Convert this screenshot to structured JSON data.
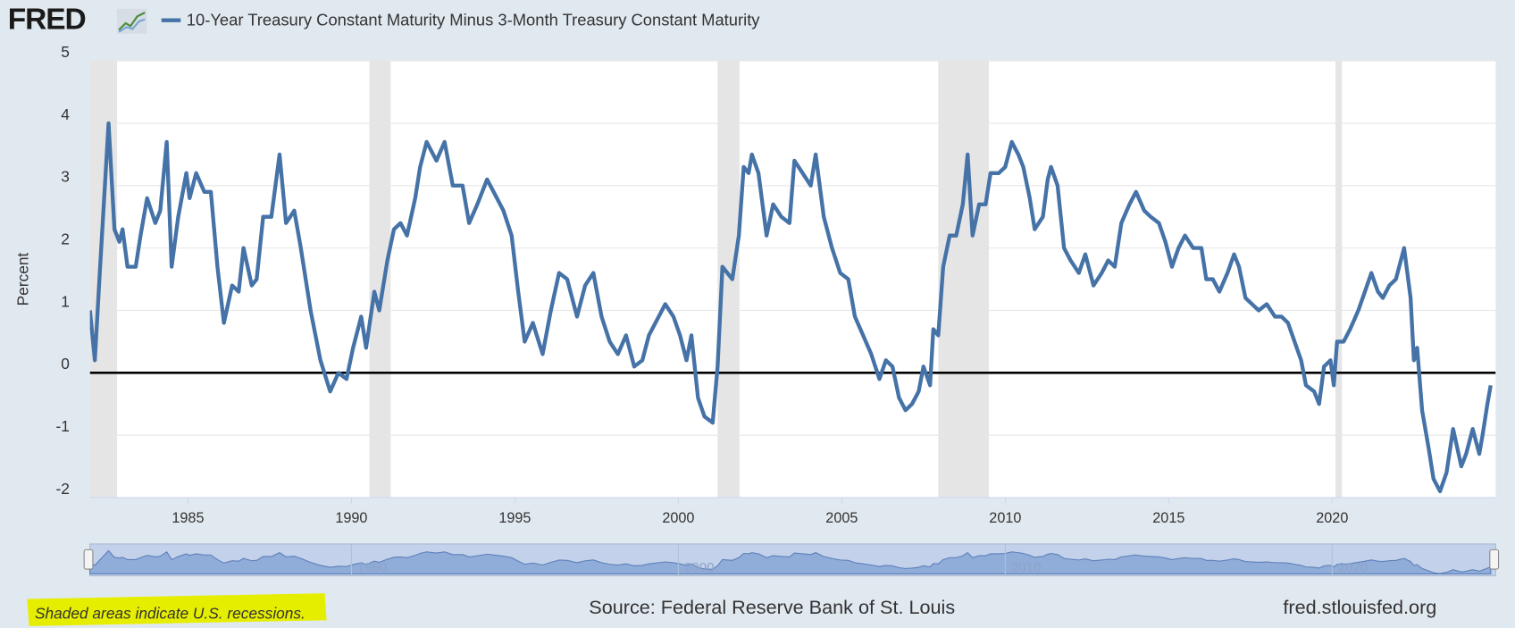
{
  "header": {
    "logo": "FRED"
  },
  "chart_data": {
    "type": "line",
    "series": [
      {
        "name": "10-Year Treasury Constant Maturity Minus 3-Month Treasury Constant Maturity",
        "color": "#4572a7",
        "values": [
          1.0,
          0.2,
          1.6,
          4.0,
          2.3,
          2.1,
          2.3,
          1.7,
          1.7,
          2.2,
          2.8,
          2.4,
          2.6,
          3.7,
          1.7,
          2.5,
          3.2,
          2.8,
          3.2,
          2.9,
          2.9,
          1.7,
          0.8,
          1.4,
          1.3,
          2.0,
          1.4,
          1.5,
          2.5,
          2.5,
          3.5,
          2.4,
          2.6,
          2.0,
          1.0,
          0.2,
          -0.3,
          0.0,
          -0.1,
          0.4,
          0.9,
          0.4,
          1.3,
          1.0,
          1.8,
          2.3,
          2.4,
          2.2,
          2.8,
          3.3,
          3.7,
          3.4,
          3.7,
          3.0,
          3.0,
          2.4,
          2.7,
          3.1,
          2.8,
          2.6,
          2.2,
          1.3,
          0.5,
          0.8,
          0.3,
          1.0,
          1.6,
          1.5,
          0.9,
          1.4,
          1.6,
          0.9,
          0.5,
          0.3,
          0.6,
          0.1,
          0.2,
          0.6,
          0.9,
          1.1,
          0.9,
          0.6,
          0.2,
          0.6,
          -0.4,
          -0.7,
          -0.8,
          0.1,
          1.7,
          1.5,
          2.2,
          3.3,
          3.2,
          3.5,
          3.2,
          2.2,
          2.7,
          2.5,
          2.4,
          3.4,
          3.2,
          3.0,
          3.5,
          2.5,
          2.0,
          1.6,
          1.5,
          0.9,
          0.6,
          0.3,
          -0.1,
          0.2,
          0.1,
          -0.4,
          -0.6,
          -0.5,
          -0.3,
          0.1,
          -0.2,
          0.7,
          0.6,
          1.7,
          2.2,
          2.2,
          2.7,
          3.5,
          2.2,
          2.7,
          2.7,
          3.2,
          3.2,
          3.3,
          3.7,
          3.5,
          3.3,
          2.8,
          2.3,
          2.5,
          3.1,
          3.3,
          3.0,
          2.0,
          1.8,
          1.6,
          1.9,
          1.4,
          1.6,
          1.8,
          1.7,
          2.4,
          2.7,
          2.9,
          2.6,
          2.5,
          2.4,
          2.1,
          1.7,
          2.0,
          2.2,
          2.0,
          2.0,
          1.5,
          1.5,
          1.3,
          1.6,
          1.9,
          1.7,
          1.2,
          1.1,
          1.0,
          1.1,
          0.9,
          0.9,
          0.8,
          0.5,
          0.2,
          -0.2,
          -0.3,
          -0.5,
          0.1,
          0.2,
          -0.2,
          0.5,
          0.5,
          0.7,
          1.0,
          1.3,
          1.6,
          1.3,
          1.2,
          1.4,
          1.5,
          2.0,
          1.2,
          0.2,
          0.4,
          -0.6,
          -1.2,
          -1.7,
          -1.9,
          -1.6,
          -0.9,
          -1.5,
          -1.3,
          -0.9,
          -1.3,
          -1.0,
          -0.5,
          -0.2
        ]
      }
    ],
    "x": [
      1982.0,
      1982.15,
      1982.3,
      1982.57,
      1982.75,
      1982.9,
      1983.0,
      1983.15,
      1983.4,
      1983.55,
      1983.75,
      1984.0,
      1984.15,
      1984.35,
      1984.5,
      1984.7,
      1984.95,
      1985.05,
      1985.25,
      1985.5,
      1985.7,
      1985.9,
      1986.1,
      1986.35,
      1986.55,
      1986.7,
      1986.95,
      1987.1,
      1987.3,
      1987.55,
      1987.8,
      1988.0,
      1988.25,
      1988.45,
      1988.75,
      1989.05,
      1989.35,
      1989.6,
      1989.85,
      1990.05,
      1990.3,
      1990.45,
      1990.7,
      1990.85,
      1991.1,
      1991.3,
      1991.5,
      1991.7,
      1991.95,
      1992.1,
      1992.3,
      1992.6,
      1992.85,
      1993.1,
      1993.4,
      1993.6,
      1993.85,
      1994.15,
      1994.45,
      1994.65,
      1994.9,
      1995.1,
      1995.3,
      1995.55,
      1995.85,
      1996.1,
      1996.35,
      1996.6,
      1996.9,
      1997.15,
      1997.4,
      1997.65,
      1997.9,
      1998.15,
      1998.4,
      1998.65,
      1998.9,
      1999.1,
      1999.4,
      1999.6,
      1999.85,
      2000.05,
      2000.25,
      2000.4,
      2000.6,
      2000.8,
      2001.05,
      2001.2,
      2001.35,
      2001.65,
      2001.85,
      2002.0,
      2002.15,
      2002.25,
      2002.45,
      2002.7,
      2002.9,
      2003.15,
      2003.4,
      2003.55,
      2003.8,
      2004.05,
      2004.2,
      2004.45,
      2004.7,
      2004.95,
      2005.2,
      2005.4,
      2005.65,
      2005.9,
      2006.15,
      2006.35,
      2006.55,
      2006.75,
      2006.95,
      2007.15,
      2007.35,
      2007.5,
      2007.7,
      2007.8,
      2007.95,
      2008.1,
      2008.3,
      2008.5,
      2008.7,
      2008.85,
      2009.0,
      2009.2,
      2009.4,
      2009.55,
      2009.8,
      2010.0,
      2010.2,
      2010.4,
      2010.55,
      2010.75,
      2010.9,
      2011.15,
      2011.3,
      2011.4,
      2011.6,
      2011.8,
      2012.0,
      2012.25,
      2012.45,
      2012.7,
      2012.95,
      2013.15,
      2013.35,
      2013.55,
      2013.8,
      2014.0,
      2014.25,
      2014.45,
      2014.7,
      2014.9,
      2015.1,
      2015.3,
      2015.5,
      2015.75,
      2016.0,
      2016.15,
      2016.35,
      2016.55,
      2016.8,
      2017.0,
      2017.15,
      2017.35,
      2017.55,
      2017.75,
      2018.0,
      2018.25,
      2018.45,
      2018.65,
      2018.85,
      2019.05,
      2019.2,
      2019.45,
      2019.6,
      2019.75,
      2019.95,
      2020.05,
      2020.15,
      2020.35,
      2020.55,
      2020.8,
      2021.0,
      2021.2,
      2021.4,
      2021.55,
      2021.75,
      2021.95,
      2022.2,
      2022.4,
      2022.5,
      2022.6,
      2022.75,
      2022.95,
      2023.1,
      2023.3,
      2023.5,
      2023.7,
      2023.95,
      2024.1,
      2024.3,
      2024.5,
      2024.6,
      2024.75,
      2024.85
    ],
    "xlim": [
      1982.0,
      2025.0
    ],
    "xticks": [
      1985,
      1990,
      1995,
      2000,
      2005,
      2010,
      2015,
      2020
    ],
    "ylim": [
      -2,
      5
    ],
    "yticks": [
      -2,
      -1,
      0,
      1,
      2,
      3,
      4,
      5
    ],
    "ylabel": "Percent",
    "grid": true,
    "baseline": 0,
    "recessions": [
      [
        1981.55,
        1982.83
      ],
      [
        1990.55,
        1991.2
      ],
      [
        2001.2,
        2001.87
      ],
      [
        2007.95,
        2009.5
      ],
      [
        2020.1,
        2020.3
      ]
    ],
    "navigator_ticks": [
      1990,
      2000,
      2010,
      2020
    ]
  },
  "footer": {
    "note": "Shaded areas indicate U.S. recessions.",
    "source": "Source: Federal Reserve Bank of St. Louis",
    "site": "fred.stlouisfed.org"
  }
}
